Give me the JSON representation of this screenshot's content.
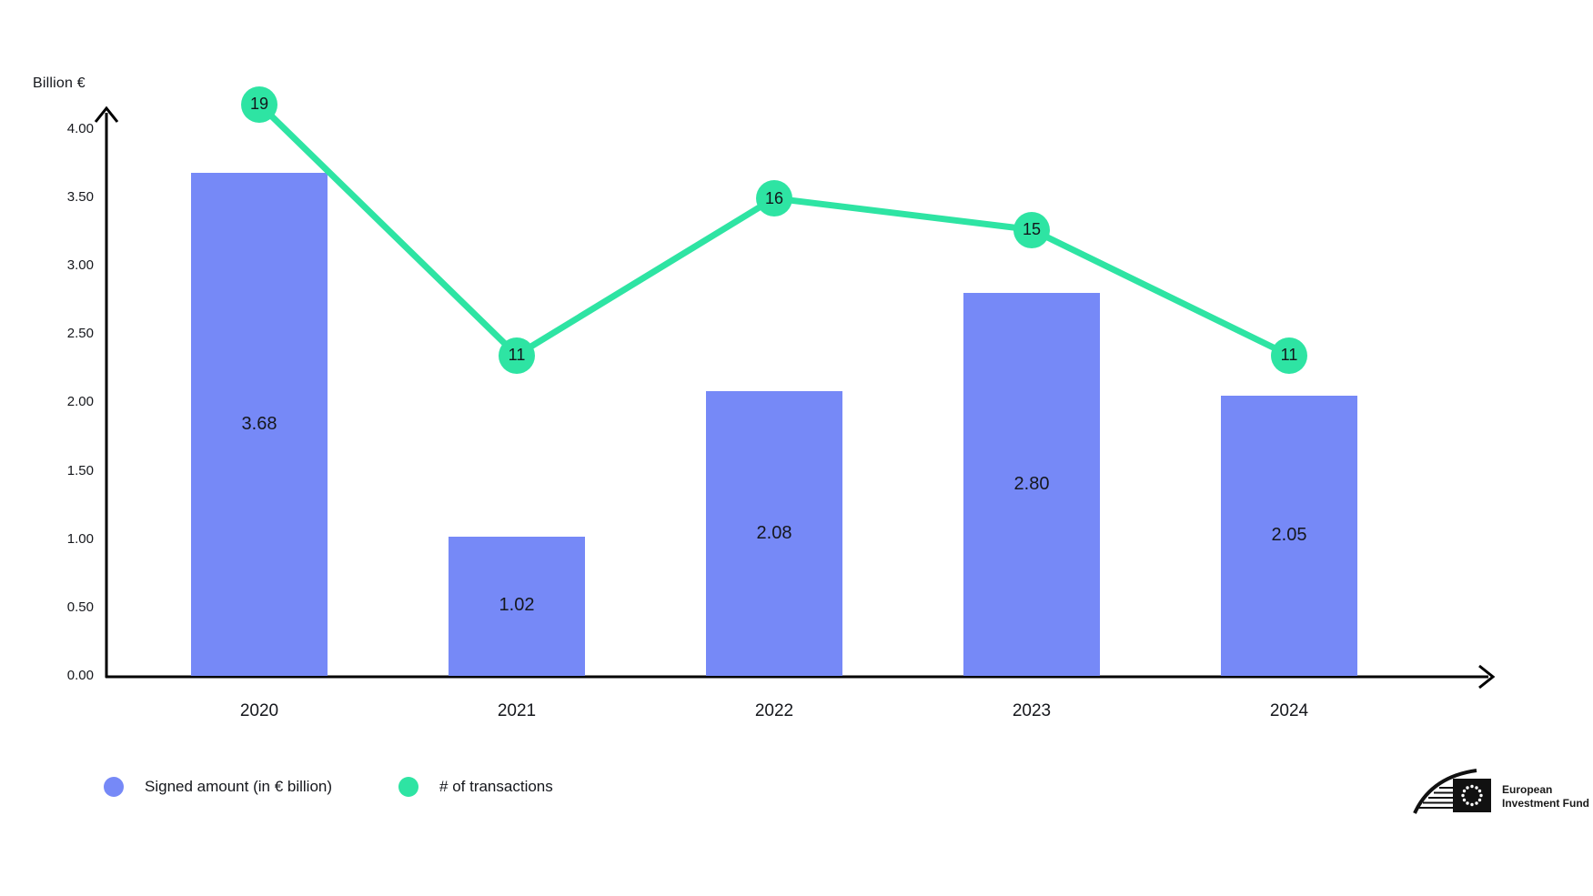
{
  "colors": {
    "bar": "#7689f7",
    "line": "#2ee4a3",
    "axis": "#000000",
    "text": "#15171c",
    "background": "#ffffff"
  },
  "chart_data": {
    "type": "bar",
    "subtype": "bar-line-combo",
    "categories": [
      "2020",
      "2021",
      "2022",
      "2023",
      "2024"
    ],
    "series": [
      {
        "name": "Signed amount (in € billion)",
        "type": "bar",
        "color": "#7689f7",
        "values": [
          3.68,
          1.02,
          2.08,
          2.8,
          2.05
        ],
        "labels": [
          "3.68",
          "1.02",
          "2.08",
          "2.80",
          "2.05"
        ]
      },
      {
        "name": "# of transactions",
        "type": "line",
        "color": "#2ee4a3",
        "values": [
          19,
          11,
          16,
          15,
          11
        ],
        "labels": [
          "19",
          "11",
          "16",
          "15",
          "11"
        ]
      }
    ],
    "y_axis": {
      "label": "Billion €",
      "ticks": [
        "4.00",
        "3.50",
        "3.00",
        "2.50",
        "2.00",
        "1.50",
        "1.00",
        "0.50",
        "0.00"
      ],
      "range": [
        0,
        4
      ]
    },
    "grid": false,
    "legend_position": "bottom-left"
  },
  "legend": {
    "items": [
      {
        "label": "Signed amount (in € billion)",
        "color": "#7689f7"
      },
      {
        "label": "# of transactions",
        "color": "#2ee4a3"
      }
    ]
  },
  "branding": {
    "org_line1": "European",
    "org_line2": "Investment Fund"
  }
}
